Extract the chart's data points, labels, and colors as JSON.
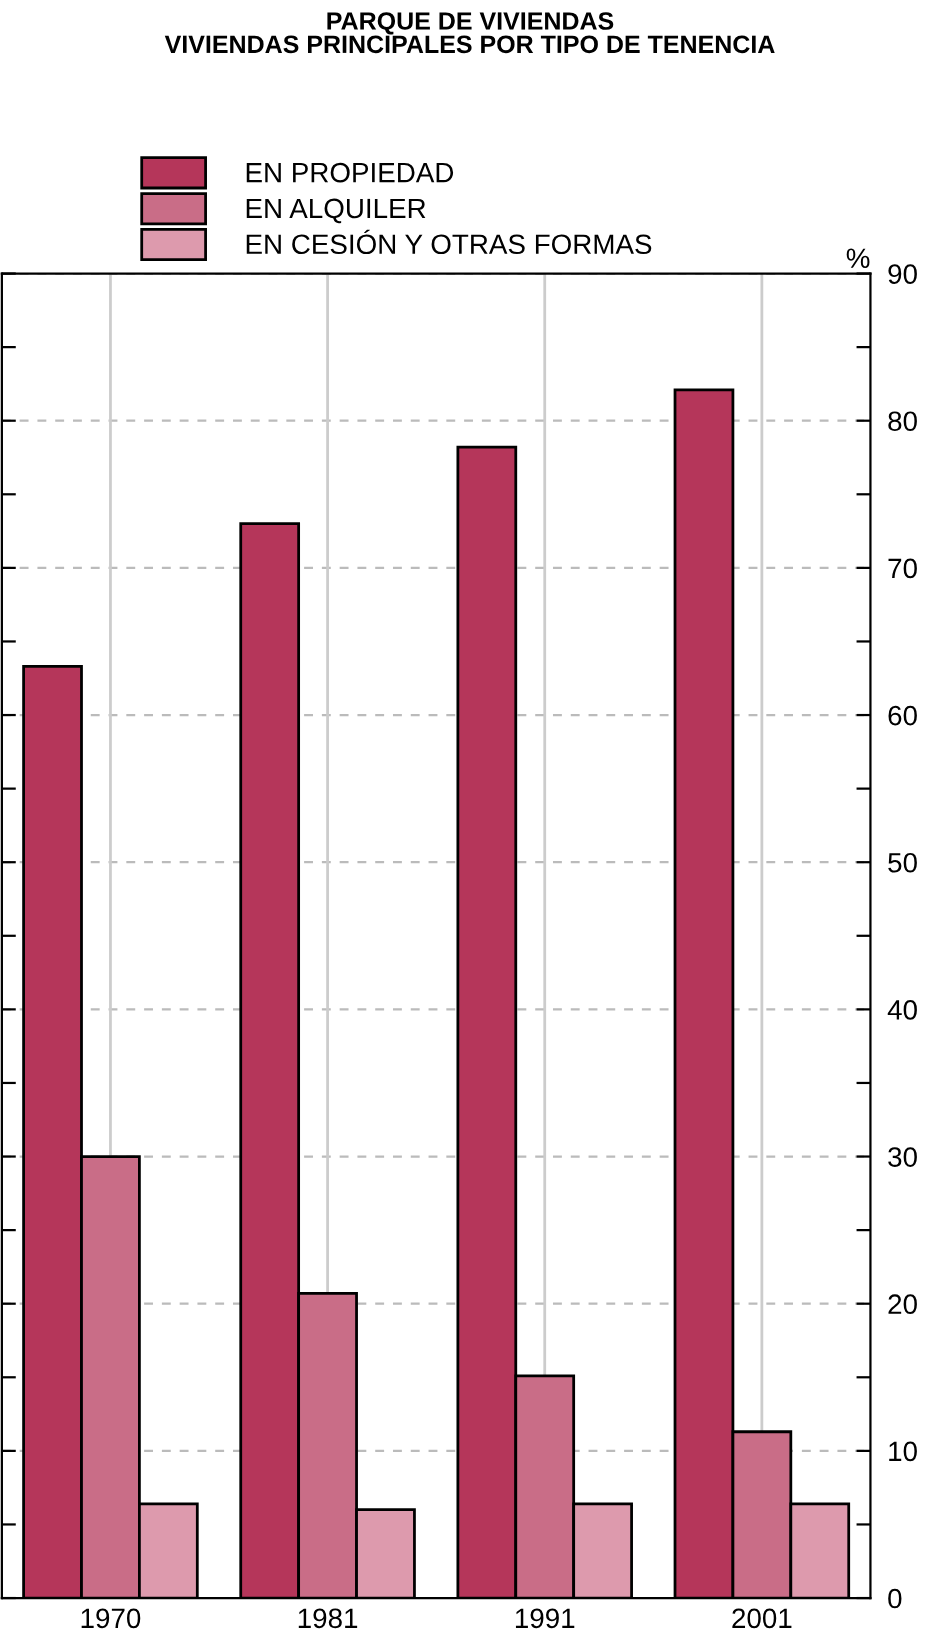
{
  "chart_data": {
    "type": "bar",
    "title": "PARQUE DE VIVIENDAS\nVIVIENDAS PRINCIPALES POR TIPO DE TENENCIA",
    "categories": [
      "1970",
      "1981",
      "1991",
      "2001"
    ],
    "series": [
      {
        "name": "EN PROPIEDAD",
        "color": "#b5365a",
        "values": [
          63.3,
          73.0,
          78.2,
          82.1
        ]
      },
      {
        "name": "EN ALQUILER",
        "color": "#c96d87",
        "values": [
          30.0,
          20.7,
          15.1,
          11.3
        ]
      },
      {
        "name": "EN CESIÓN Y OTRAS FORMAS",
        "color": "#dd9aad",
        "values": [
          6.4,
          6.0,
          6.4,
          6.4
        ]
      }
    ],
    "ylabel": "%",
    "ylim": [
      0,
      90
    ],
    "yticks": [
      0,
      {
        "value": 5,
        "label": null
      },
      10,
      {
        "value": 15,
        "label": null
      },
      20,
      {
        "value": 25,
        "label": null
      },
      30,
      {
        "value": 35,
        "label": null
      },
      40,
      {
        "value": 45,
        "label": null
      },
      50,
      {
        "value": 55,
        "label": null
      },
      60,
      {
        "value": 65,
        "label": null
      },
      70,
      {
        "value": 75,
        "label": null
      },
      80,
      {
        "value": 85,
        "label": null
      },
      90
    ],
    "grid": true,
    "legend": "top left"
  }
}
